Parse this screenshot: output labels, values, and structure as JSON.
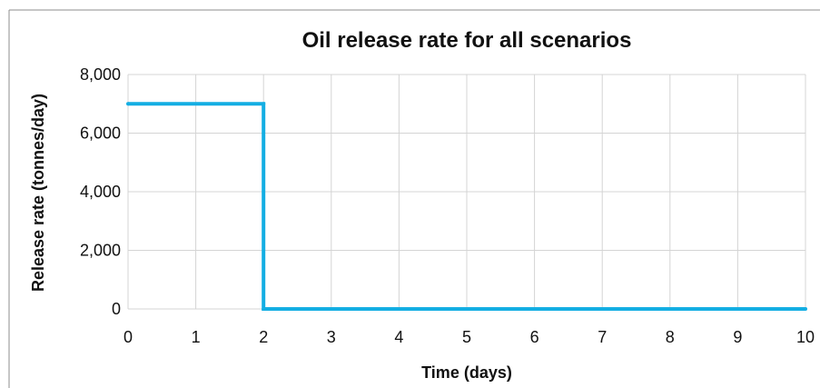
{
  "chart_data": {
    "type": "line",
    "title": "Oil release rate for all scenarios",
    "xlabel": "Time (days)",
    "ylabel": "Release rate (tonnes/day)",
    "xlim": [
      0,
      10
    ],
    "ylim": [
      0,
      8000
    ],
    "x_ticks": [
      0,
      1,
      2,
      3,
      4,
      5,
      6,
      7,
      8,
      9,
      10
    ],
    "y_ticks": [
      0,
      2000,
      4000,
      6000,
      8000
    ],
    "x_tick_labels": [
      "0",
      "1",
      "2",
      "3",
      "4",
      "5",
      "6",
      "7",
      "8",
      "9",
      "10"
    ],
    "y_tick_labels": [
      "0",
      "2,000",
      "4,000",
      "6,000",
      "8,000"
    ],
    "grid": true,
    "legend": "none",
    "series": [
      {
        "color": "#14aee3",
        "points": [
          {
            "x": 0,
            "y": 7000
          },
          {
            "x": 2,
            "y": 7000
          },
          {
            "x": 2,
            "y": 0
          },
          {
            "x": 10,
            "y": 0
          }
        ]
      }
    ]
  }
}
